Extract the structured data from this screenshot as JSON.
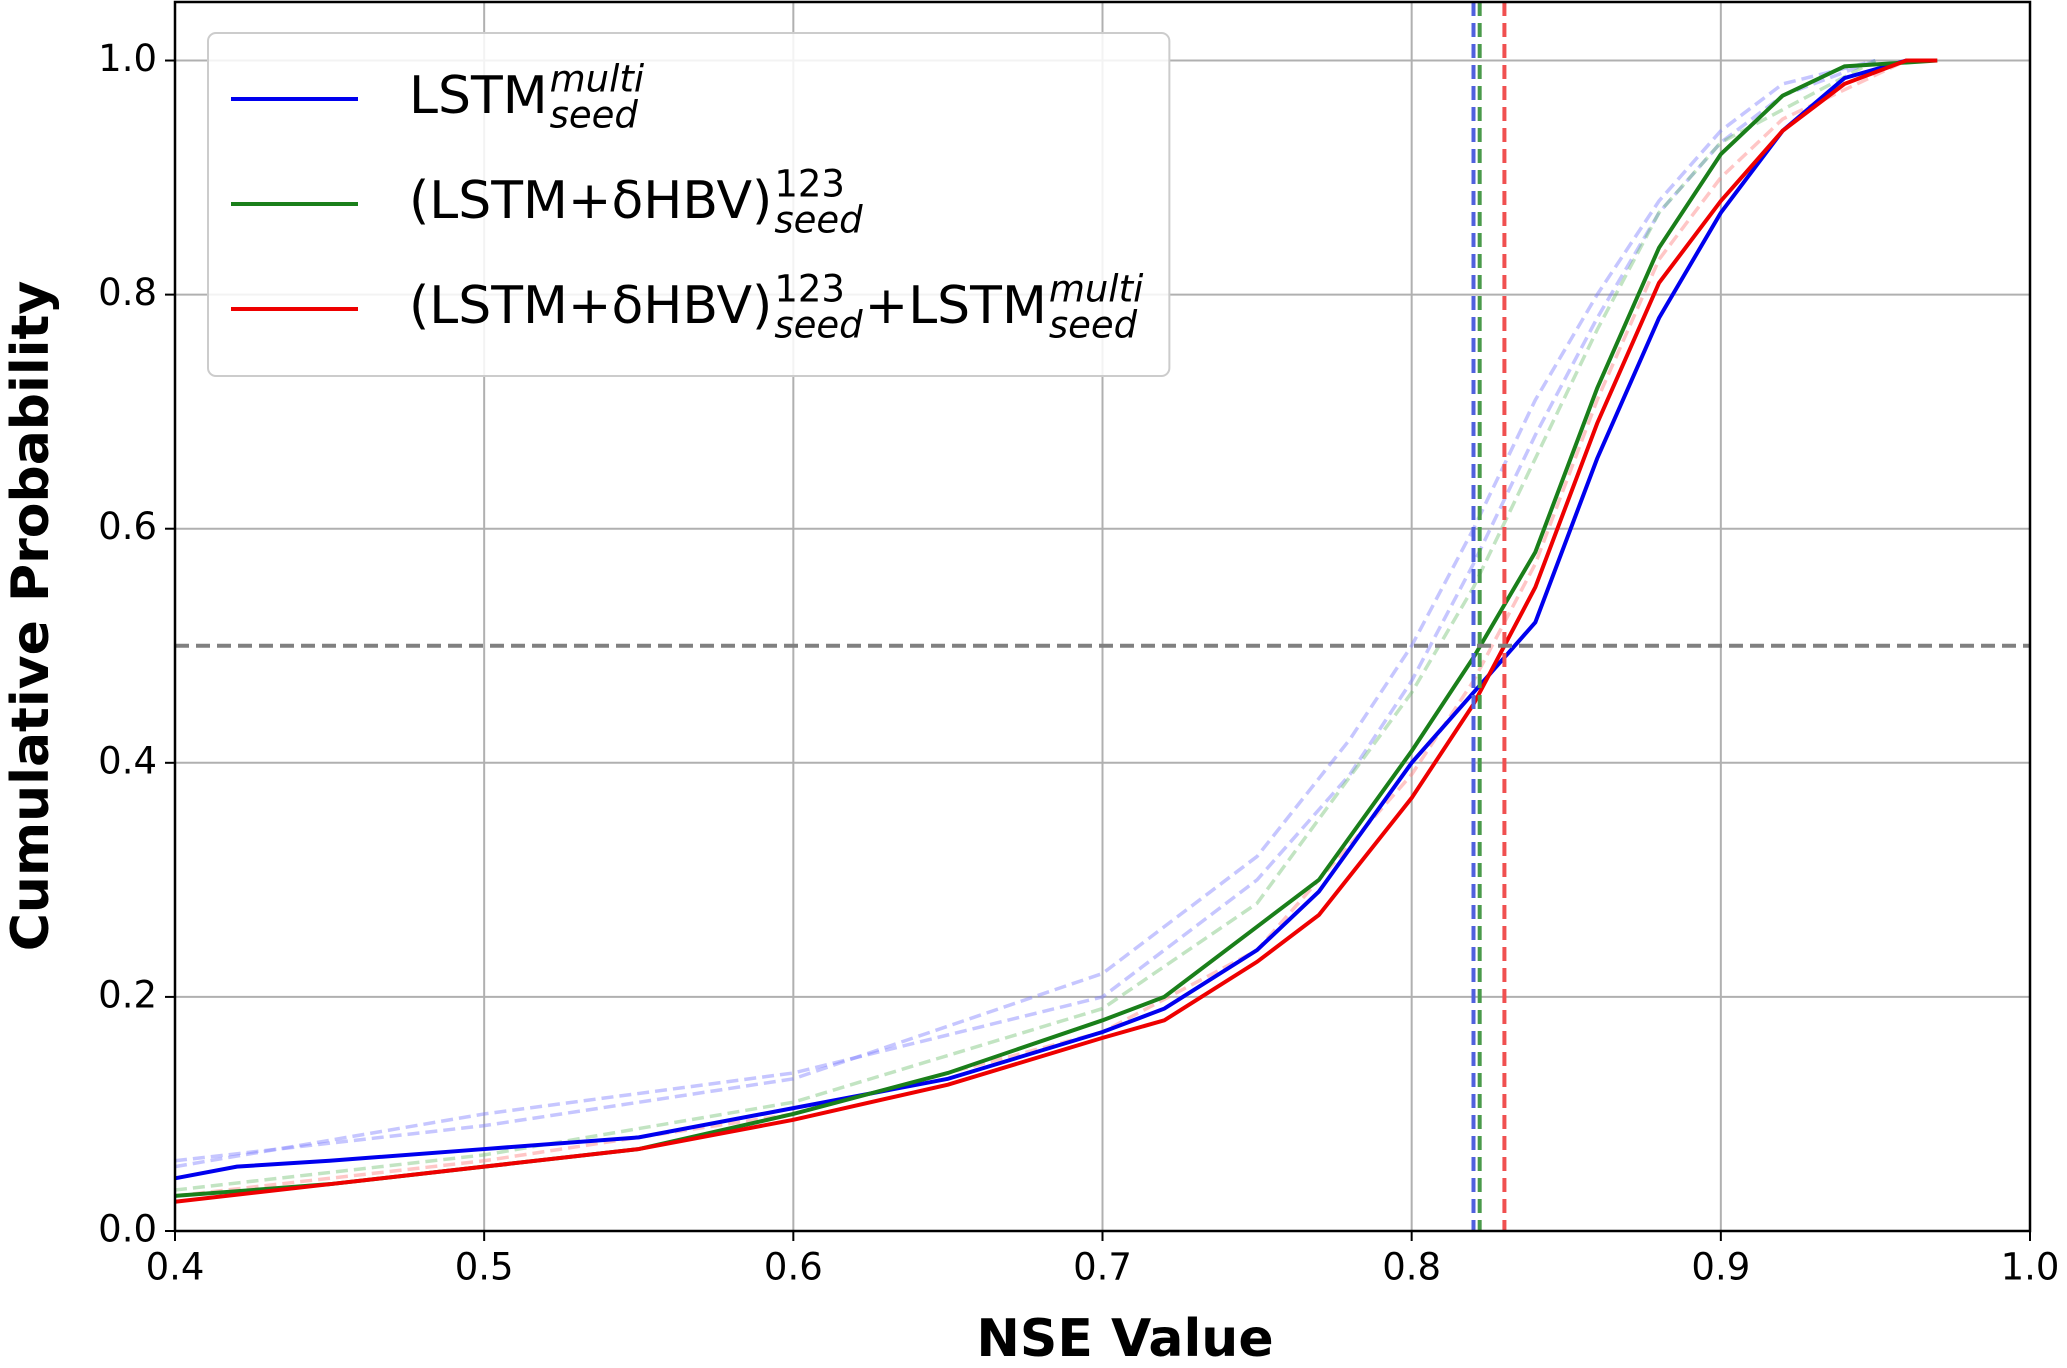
{
  "chart_data": {
    "type": "line",
    "x_label": "NSE Value",
    "y_label": "Cumulative Probability",
    "xlim": [
      0.4,
      1.0
    ],
    "ylim": [
      0,
      1.05
    ],
    "xticks": [
      0.4,
      0.5,
      0.6,
      0.7,
      0.8,
      0.9,
      {
        "value": 1,
        "label": "1.0"
      }
    ],
    "yticks": [
      {
        "value": 0,
        "label": "0.0"
      },
      0.2,
      0.4,
      0.6,
      0.8,
      {
        "value": 1,
        "label": "1.0"
      }
    ],
    "grid": true,
    "legend": "upper left",
    "series": [
      {
        "color": "#8080ff",
        "dashed": true,
        "opacity": 0.45,
        "x": [
          0.4,
          0.5,
          0.6,
          0.7,
          0.75,
          0.78,
          0.8,
          0.82,
          0.84,
          0.86,
          0.88,
          0.9,
          0.92,
          0.95
        ],
        "values": [
          0.06,
          0.09,
          0.13,
          0.22,
          0.32,
          0.42,
          0.5,
          0.6,
          0.71,
          0.8,
          0.88,
          0.94,
          0.98,
          1.0
        ]
      },
      {
        "color": "#8080ff",
        "dashed": true,
        "opacity": 0.45,
        "x": [
          0.4,
          0.5,
          0.6,
          0.7,
          0.75,
          0.78,
          0.8,
          0.82,
          0.84,
          0.86,
          0.88,
          0.9,
          0.92,
          0.95
        ],
        "values": [
          0.055,
          0.1,
          0.135,
          0.2,
          0.3,
          0.39,
          0.47,
          0.57,
          0.68,
          0.78,
          0.87,
          0.93,
          0.97,
          1.0
        ]
      },
      {
        "color": "#66bb66",
        "dashed": true,
        "opacity": 0.4,
        "x": [
          0.4,
          0.5,
          0.6,
          0.7,
          0.75,
          0.8,
          0.82,
          0.84,
          0.86,
          0.88,
          0.9,
          0.95
        ],
        "values": [
          0.035,
          0.065,
          0.11,
          0.19,
          0.28,
          0.46,
          0.55,
          0.66,
          0.77,
          0.87,
          0.93,
          1.0
        ]
      },
      {
        "color": "#ff8080",
        "dashed": true,
        "opacity": 0.45,
        "x": [
          0.4,
          0.5,
          0.6,
          0.7,
          0.75,
          0.8,
          0.82,
          0.84,
          0.86,
          0.88,
          0.9,
          0.92,
          0.96
        ],
        "values": [
          0.03,
          0.06,
          0.1,
          0.17,
          0.24,
          0.39,
          0.47,
          0.57,
          0.71,
          0.83,
          0.9,
          0.95,
          1.0
        ]
      },
      {
        "name": [
          {
            "text": "LSTM"
          },
          {
            "sup": "multi",
            "sub": "seed"
          }
        ],
        "color": "#0000ee",
        "x": [
          0.4,
          0.42,
          0.45,
          0.5,
          0.55,
          0.6,
          0.65,
          0.7,
          0.72,
          0.75,
          0.77,
          0.8,
          0.82,
          0.84,
          0.86,
          0.88,
          0.9,
          0.92,
          0.94,
          0.96
        ],
        "values": [
          0.045,
          0.055,
          0.06,
          0.07,
          0.08,
          0.105,
          0.13,
          0.17,
          0.19,
          0.24,
          0.29,
          0.4,
          0.46,
          0.52,
          0.66,
          0.78,
          0.87,
          0.94,
          0.985,
          1.0
        ]
      },
      {
        "name": [
          {
            "text": "(LSTM+δHBV)"
          },
          {
            "sup": "123",
            "sub": "seed"
          }
        ],
        "color": "#1a7f1a",
        "x": [
          0.4,
          0.45,
          0.5,
          0.55,
          0.6,
          0.65,
          0.7,
          0.72,
          0.75,
          0.77,
          0.8,
          0.82,
          0.84,
          0.86,
          0.88,
          0.9,
          0.92,
          0.94,
          0.97
        ],
        "values": [
          0.03,
          0.04,
          0.055,
          0.07,
          0.1,
          0.135,
          0.18,
          0.2,
          0.26,
          0.3,
          0.41,
          0.49,
          0.58,
          0.72,
          0.84,
          0.92,
          0.97,
          0.995,
          1.0
        ]
      },
      {
        "name": [
          {
            "text": "(LSTM+δHBV)"
          },
          {
            "sup": "123",
            "sub": "seed"
          },
          {
            "text": "+LSTM"
          },
          {
            "sup": "multi",
            "sub": "seed"
          }
        ],
        "color": "#ee0000",
        "x": [
          0.4,
          0.45,
          0.5,
          0.55,
          0.6,
          0.65,
          0.7,
          0.72,
          0.75,
          0.77,
          0.8,
          0.82,
          0.84,
          0.86,
          0.88,
          0.9,
          0.92,
          0.94,
          0.96,
          0.97
        ],
        "values": [
          0.025,
          0.04,
          0.055,
          0.07,
          0.095,
          0.125,
          0.165,
          0.18,
          0.23,
          0.27,
          0.37,
          0.45,
          0.55,
          0.69,
          0.81,
          0.88,
          0.94,
          0.98,
          1.0,
          1.0
        ]
      }
    ],
    "reference_lines": {
      "x": [
        {
          "value": 0.82,
          "color": "#5060dd"
        },
        {
          "value": 0.822,
          "color": "#4a9a4a"
        },
        {
          "value": 0.83,
          "color": "#f05050"
        }
      ],
      "y": [
        {
          "value": 0.5,
          "color": "#808080"
        }
      ]
    }
  }
}
